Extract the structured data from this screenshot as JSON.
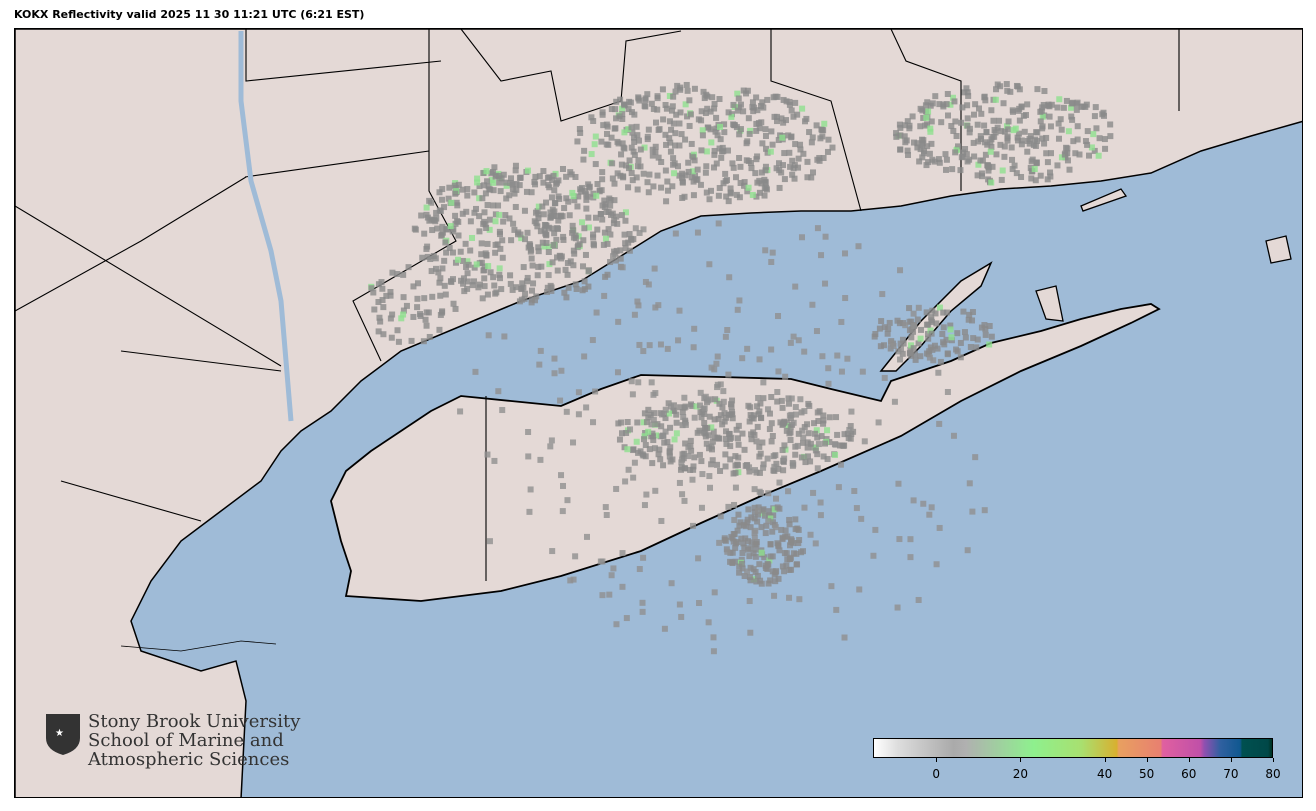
{
  "title": "KOKX Reflectivity valid 2025 11 30 11:21 UTC (6:21 EST)",
  "colors": {
    "ocean": "#9fbbd7",
    "land": "#e4d9d6",
    "border": "#000000",
    "echo": "#8a8a8a"
  },
  "logo": {
    "line1": "Stony Brook University",
    "line2": "School of Marine and",
    "line3": "Atmospheric Sciences"
  },
  "colorbar": {
    "min": -15,
    "max": 80,
    "ticks": [
      "0",
      "20",
      "40",
      "50",
      "60",
      "70",
      "80"
    ],
    "tick_values": [
      0,
      20,
      40,
      50,
      60,
      70,
      80
    ]
  }
}
